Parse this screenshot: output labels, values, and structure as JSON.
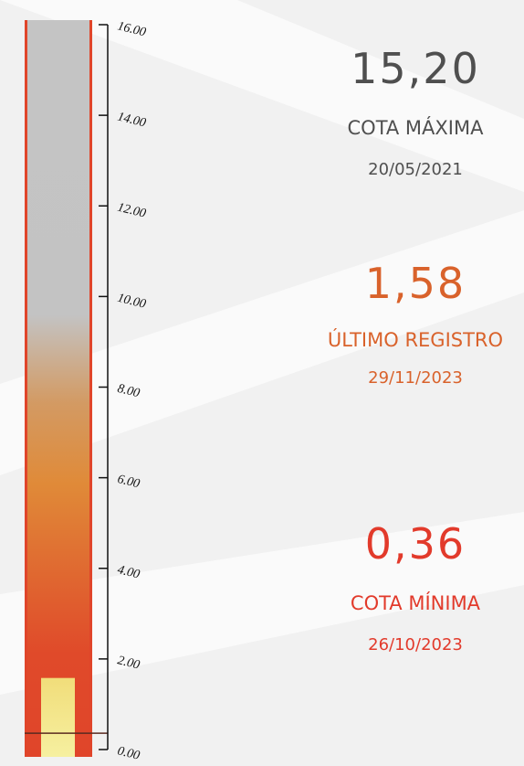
{
  "chart_data": {
    "type": "gauge",
    "ylim": [
      0,
      16
    ],
    "yticks": [
      {
        "value": 0,
        "label": "0.00"
      },
      {
        "value": 2,
        "label": "2.00"
      },
      {
        "value": 4,
        "label": "4.00"
      },
      {
        "value": 6,
        "label": "6.00"
      },
      {
        "value": 8,
        "label": "8.00"
      },
      {
        "value": 10,
        "label": "10.00"
      },
      {
        "value": 12,
        "label": "12.00"
      },
      {
        "value": 14,
        "label": "14.00"
      },
      {
        "value": 16,
        "label": "16.00"
      }
    ],
    "categories": [
      "COTA MÁXIMA",
      "ÚLTIMO REGISTRO",
      "COTA MÍNIMA"
    ],
    "values": [
      15.2,
      1.58,
      0.36
    ],
    "value_labels": [
      "15,20",
      "1,58",
      "0,36"
    ],
    "dates": [
      "20/05/2021",
      "29/11/2023",
      "26/10/2023"
    ],
    "colors": [
      "#4f4f4f",
      "#d9622b",
      "#e23a2b"
    ]
  }
}
